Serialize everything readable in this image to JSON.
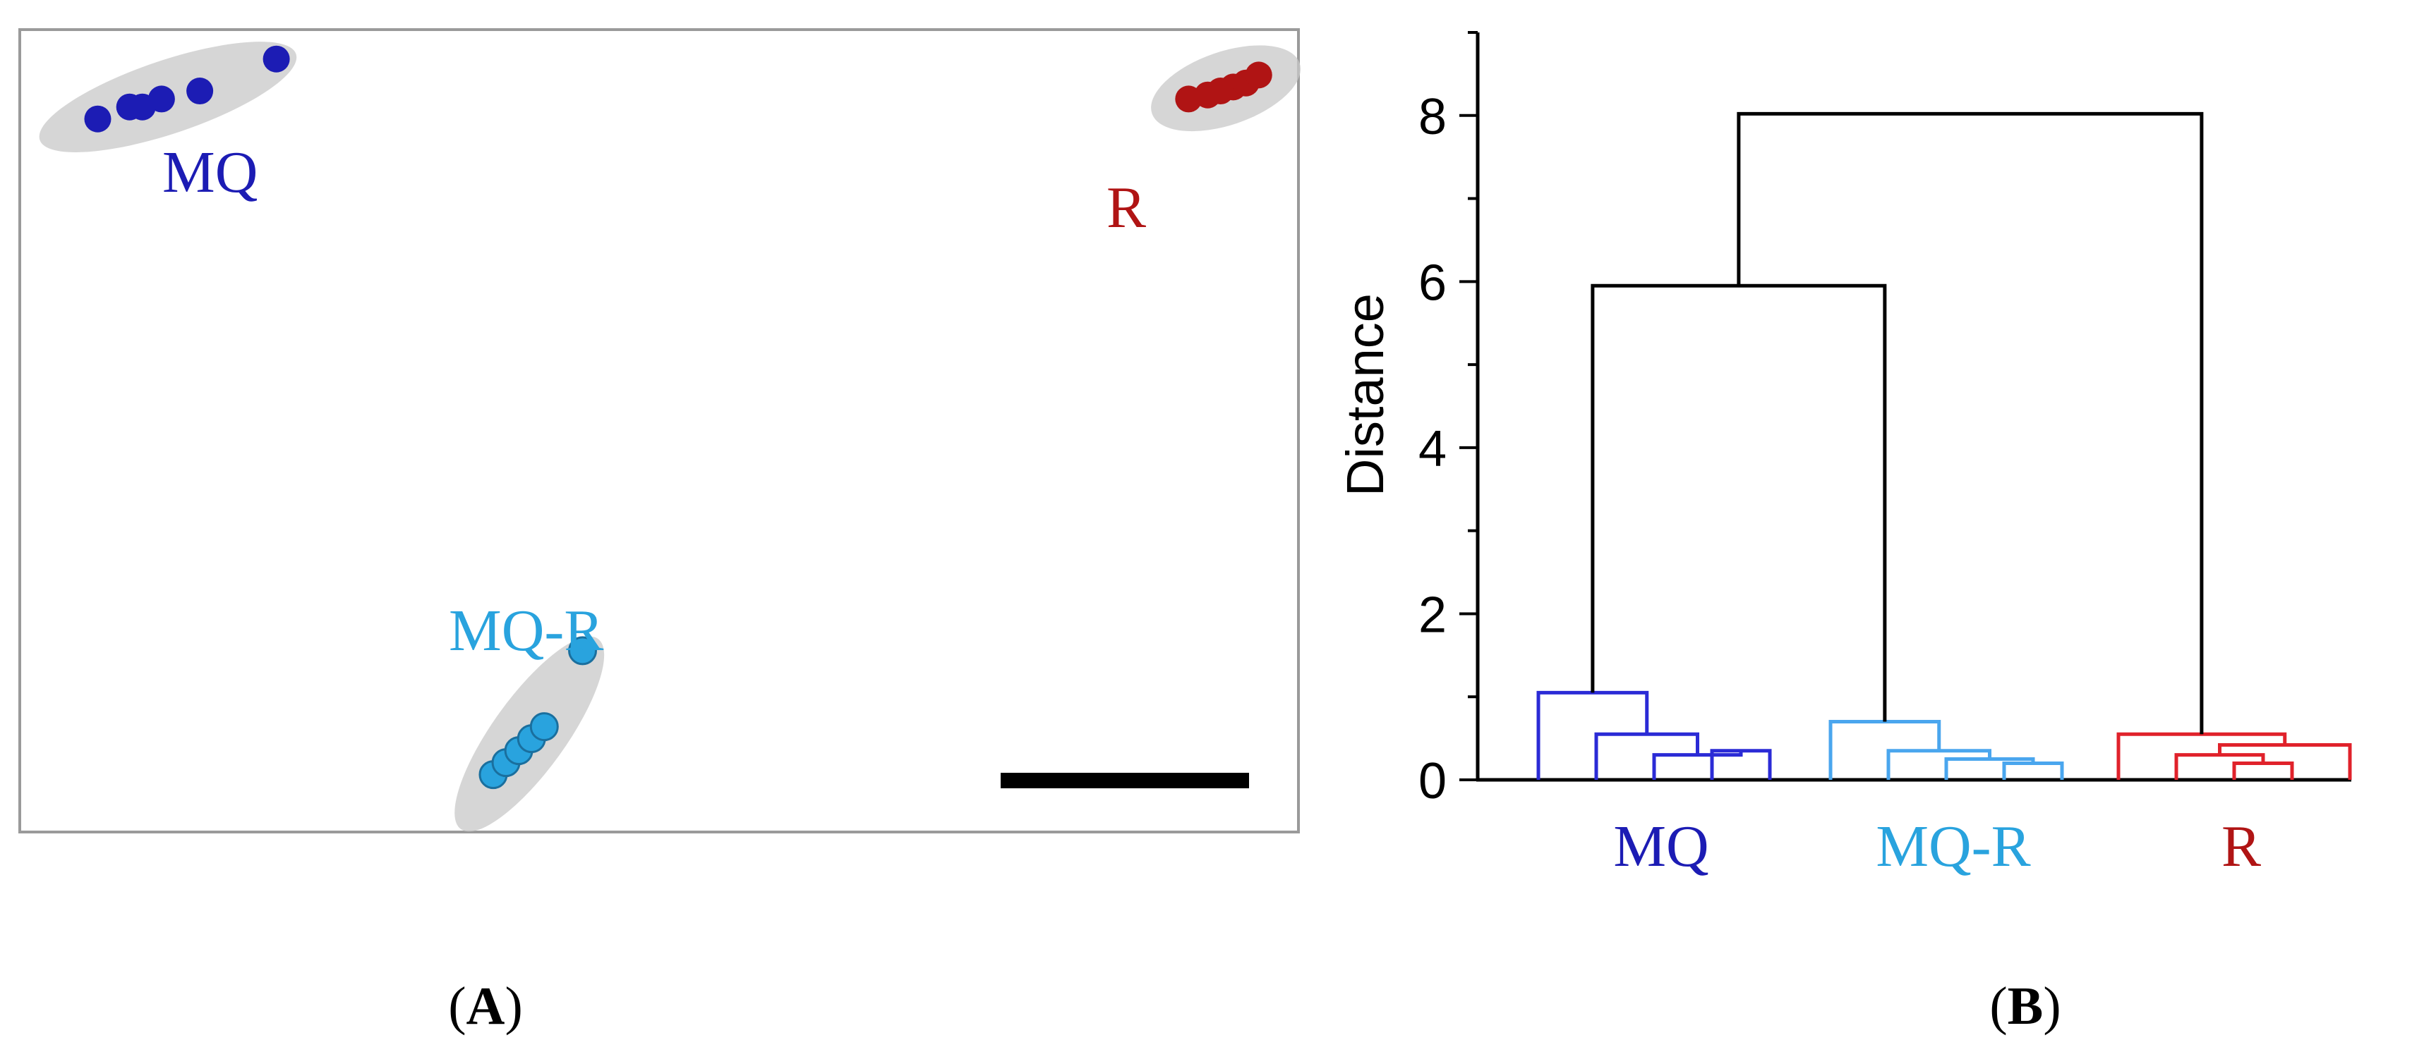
{
  "colors": {
    "MQ": "#1c1cb4",
    "MQ-R": "#29a3de",
    "R": "#b01414",
    "dendro_MQ": "#2b2bd6",
    "dendro_MQ-R": "#4aa6ee",
    "dendro_R": "#e0222b",
    "frame": "#9a9a9a",
    "ellipse": "#c8c8c8",
    "black": "#000000"
  },
  "panel_labels": {
    "a": "A",
    "b": "B"
  },
  "chart_data": [
    {
      "panel": "A",
      "type": "scatter",
      "title": "",
      "xlabel": "",
      "ylabel": "",
      "legend": "none",
      "grid": false,
      "axes_visible": false,
      "scale_bar": true,
      "groups": [
        {
          "name": "MQ",
          "points": [
            [
              0.06,
              0.89
            ],
            [
              0.085,
              0.905
            ],
            [
              0.095,
              0.905
            ],
            [
              0.11,
              0.915
            ],
            [
              0.14,
              0.925
            ],
            [
              0.2,
              0.965
            ]
          ]
        },
        {
          "name": "R",
          "points": [
            [
              0.915,
              0.915
            ],
            [
              0.93,
              0.92
            ],
            [
              0.94,
              0.925
            ],
            [
              0.95,
              0.93
            ],
            [
              0.96,
              0.935
            ],
            [
              0.97,
              0.945
            ]
          ]
        },
        {
          "name": "MQ-R",
          "points": [
            [
              0.37,
              0.07
            ],
            [
              0.38,
              0.085
            ],
            [
              0.39,
              0.1
            ],
            [
              0.4,
              0.115
            ],
            [
              0.41,
              0.13
            ],
            [
              0.44,
              0.225
            ]
          ]
        }
      ]
    },
    {
      "panel": "B",
      "type": "dendrogram",
      "title": "",
      "xlabel": "",
      "ylabel": "Distance",
      "ylim": [
        0,
        9
      ],
      "yticks": [
        0,
        2,
        4,
        6,
        8
      ],
      "grid": false,
      "leaves_per_group": 5,
      "groups": [
        {
          "name": "MQ",
          "merges": [
            {
              "left": 3,
              "right": 4,
              "height": 0.35
            },
            {
              "left": 2,
              "right": 5,
              "height": 0.3
            },
            {
              "left": 1,
              "right": 6,
              "height": 0.55
            },
            {
              "left": 0,
              "right": 7,
              "height": 1.05
            }
          ]
        },
        {
          "name": "MQ-R",
          "merges": [
            {
              "left": 3,
              "right": 4,
              "height": 0.2
            },
            {
              "left": 2,
              "right": 5,
              "height": 0.25
            },
            {
              "left": 1,
              "right": 6,
              "height": 0.35
            },
            {
              "left": 0,
              "right": 7,
              "height": 0.7
            }
          ]
        },
        {
          "name": "R",
          "merges": [
            {
              "left": 2,
              "right": 3,
              "height": 0.2
            },
            {
              "left": 1,
              "right": 5,
              "height": 0.3
            },
            {
              "left": 6,
              "right": 4,
              "height": 0.42
            },
            {
              "left": 0,
              "right": 7,
              "height": 0.55
            }
          ]
        }
      ],
      "top_merges": [
        {
          "join": [
            "MQ",
            "MQ-R"
          ],
          "height": 5.95
        },
        {
          "join": [
            "MQ+MQ-R",
            "R"
          ],
          "height": 8.02
        }
      ]
    }
  ]
}
